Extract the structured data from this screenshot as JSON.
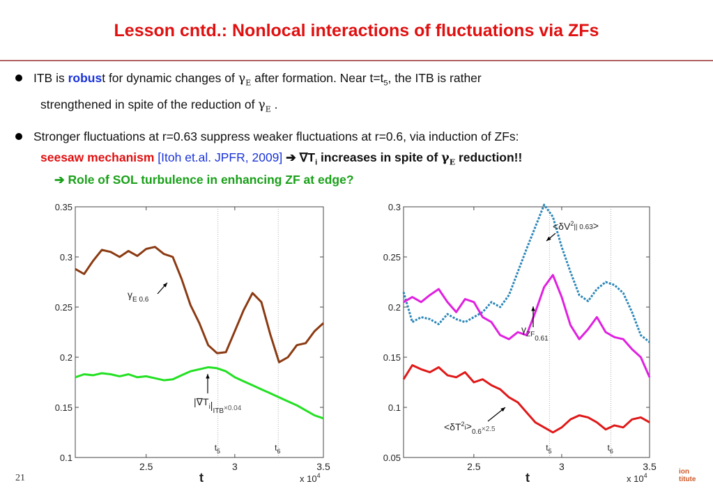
{
  "slide": {
    "title": "Lesson cntd.: Nonlocal interactions of fluctuations via ZFs",
    "page_number": "21",
    "logo_text_1": "ion",
    "logo_text_2": "titute"
  },
  "bullets": {
    "b1_part1": "ITB is ",
    "b1_robus": "robus",
    "b1_part2": "t for dynamic changes of ",
    "b1_gamma": "γ",
    "b1_gamma_sub": "E",
    "b1_part3": " after formation.  Near t=t",
    "b1_sub5": "5",
    "b1_part4": ", the ITB is rather",
    "b1_line2a": "strengthened in spite of the reduction of ",
    "b1_line2_end": " .",
    "b2_line1": "Stronger fluctuations at r=0.63 suppress weaker fluctuations at r=0.6, via induction of ZFs:",
    "b2_seesaw": "seesaw mechanism",
    "b2_ref": " [Itoh et.al. JPFR, 2009] ",
    "b2_arrow": "➔ ",
    "b2_nabla": "∇T",
    "b2_sub_i": "i",
    "b2_increases": " increases  in spite of ",
    "b2_gamma": "γ",
    "b2_gamma_sub": "E",
    "b2_reduction": " reduction!!",
    "green_line": "➔ Role of SOL turbulence in enhancing ZF at edge?"
  },
  "chart_data": [
    {
      "type": "line",
      "xlabel": "t",
      "x_exponent_label": "x 10",
      "x_exponent": "4",
      "xlim": [
        2.1,
        3.5
      ],
      "ylim": [
        0.1,
        0.35
      ],
      "xticks": [
        "2.5",
        "3",
        "3.5"
      ],
      "yticks": [
        "0.1",
        "0.15",
        "0.2",
        "0.25",
        "0.3",
        "0.35"
      ],
      "vlines": [
        {
          "label": "t",
          "sub": "5",
          "x": 2.905
        },
        {
          "label": "t",
          "sub": "6",
          "x": 3.245
        }
      ],
      "series": [
        {
          "color": "#8b3a12",
          "label_main": "γ",
          "label_sub": "E 0.6",
          "x": [
            2.1,
            2.15,
            2.2,
            2.25,
            2.3,
            2.35,
            2.4,
            2.45,
            2.5,
            2.55,
            2.6,
            2.65,
            2.7,
            2.75,
            2.8,
            2.85,
            2.9,
            2.95,
            3.0,
            3.05,
            3.1,
            3.15,
            3.2,
            3.25,
            3.3,
            3.35,
            3.4,
            3.45,
            3.5
          ],
          "values": [
            0.288,
            0.283,
            0.296,
            0.307,
            0.305,
            0.3,
            0.306,
            0.301,
            0.308,
            0.31,
            0.303,
            0.3,
            0.278,
            0.252,
            0.234,
            0.212,
            0.204,
            0.205,
            0.226,
            0.247,
            0.264,
            0.255,
            0.223,
            0.195,
            0.2,
            0.212,
            0.214,
            0.226,
            0.234
          ]
        },
        {
          "color": "#22e022",
          "label_main": "|∇T",
          "label_sub": "i",
          "label_suffix": "|",
          "label_sub2": "ITB",
          "label_mult": "×0.04",
          "x": [
            2.1,
            2.15,
            2.2,
            2.25,
            2.3,
            2.35,
            2.4,
            2.45,
            2.5,
            2.55,
            2.6,
            2.65,
            2.7,
            2.75,
            2.8,
            2.85,
            2.9,
            2.95,
            3.0,
            3.05,
            3.1,
            3.15,
            3.2,
            3.25,
            3.3,
            3.35,
            3.4,
            3.45,
            3.5
          ],
          "values": [
            0.18,
            0.183,
            0.182,
            0.184,
            0.183,
            0.181,
            0.183,
            0.18,
            0.181,
            0.179,
            0.177,
            0.178,
            0.182,
            0.186,
            0.188,
            0.19,
            0.189,
            0.186,
            0.18,
            0.176,
            0.172,
            0.168,
            0.164,
            0.16,
            0.156,
            0.152,
            0.147,
            0.142,
            0.139
          ]
        }
      ]
    },
    {
      "type": "line",
      "xlabel": "t",
      "x_exponent_label": "x 10",
      "x_exponent": "4",
      "xlim": [
        2.1,
        3.5
      ],
      "ylim": [
        0.05,
        0.3
      ],
      "xticks": [
        "2.5",
        "3",
        "3.5"
      ],
      "yticks": [
        "0.05",
        "0.1",
        "0.15",
        "0.2",
        "0.25",
        "0.3"
      ],
      "vlines": [
        {
          "label": "t",
          "sub": "5",
          "x": 2.93
        },
        {
          "label": "t",
          "sub": "6",
          "x": 3.28
        }
      ],
      "series": [
        {
          "color": "#2a86b8",
          "dashed": true,
          "label_main": "<δV",
          "label_sup": "2",
          "label_suffix": ">",
          "label_sub": "|| 0.63",
          "x": [
            2.1,
            2.15,
            2.2,
            2.25,
            2.3,
            2.35,
            2.4,
            2.45,
            2.5,
            2.55,
            2.6,
            2.65,
            2.7,
            2.75,
            2.8,
            2.85,
            2.9,
            2.95,
            3.0,
            3.05,
            3.1,
            3.15,
            3.2,
            3.25,
            3.3,
            3.35,
            3.4,
            3.45,
            3.5
          ],
          "values": [
            0.215,
            0.185,
            0.19,
            0.188,
            0.183,
            0.193,
            0.188,
            0.185,
            0.19,
            0.195,
            0.205,
            0.2,
            0.212,
            0.235,
            0.258,
            0.28,
            0.302,
            0.29,
            0.26,
            0.235,
            0.212,
            0.206,
            0.218,
            0.225,
            0.222,
            0.214,
            0.195,
            0.172,
            0.165
          ]
        },
        {
          "color": "#e020e0",
          "label_main": "γ",
          "label_sub": "ZF",
          "label_sub2": "0.61",
          "x": [
            2.1,
            2.15,
            2.2,
            2.25,
            2.3,
            2.35,
            2.4,
            2.45,
            2.5,
            2.55,
            2.6,
            2.65,
            2.7,
            2.75,
            2.8,
            2.85,
            2.9,
            2.95,
            3.0,
            3.05,
            3.1,
            3.15,
            3.2,
            3.25,
            3.3,
            3.35,
            3.4,
            3.45,
            3.5
          ],
          "values": [
            0.205,
            0.21,
            0.205,
            0.212,
            0.218,
            0.205,
            0.195,
            0.208,
            0.205,
            0.19,
            0.185,
            0.172,
            0.168,
            0.175,
            0.172,
            0.195,
            0.22,
            0.232,
            0.21,
            0.182,
            0.168,
            0.178,
            0.19,
            0.175,
            0.17,
            0.168,
            0.158,
            0.15,
            0.13
          ]
        },
        {
          "color": "#e01818",
          "label_main": "<δT",
          "label_sup": "2",
          "label_sub": "i",
          "label_suffix": ">",
          "label_sub2": "0.6",
          "label_mult": "×2.5",
          "x": [
            2.1,
            2.15,
            2.2,
            2.25,
            2.3,
            2.35,
            2.4,
            2.45,
            2.5,
            2.55,
            2.6,
            2.65,
            2.7,
            2.75,
            2.8,
            2.85,
            2.9,
            2.95,
            3.0,
            3.05,
            3.1,
            3.15,
            3.2,
            3.25,
            3.3,
            3.35,
            3.4,
            3.45,
            3.5
          ],
          "values": [
            0.128,
            0.142,
            0.138,
            0.135,
            0.14,
            0.132,
            0.13,
            0.135,
            0.125,
            0.128,
            0.122,
            0.118,
            0.11,
            0.105,
            0.095,
            0.085,
            0.08,
            0.075,
            0.08,
            0.088,
            0.092,
            0.09,
            0.085,
            0.078,
            0.082,
            0.08,
            0.088,
            0.09,
            0.085
          ]
        }
      ]
    }
  ]
}
